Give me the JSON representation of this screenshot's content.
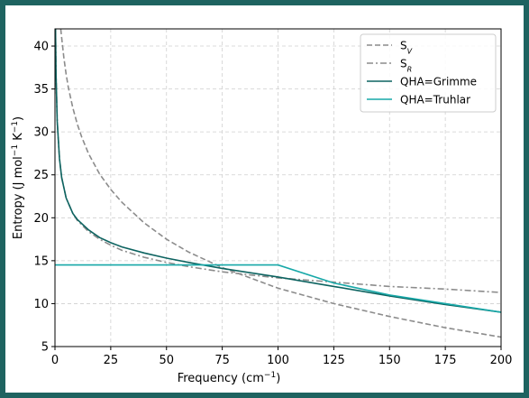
{
  "chart_data": {
    "type": "line",
    "xlabel": "Frequency (cm",
    "xlabel_sup": "−1",
    "xlabel_end": ")",
    "ylabel": "Entropy (J mol",
    "ylabel_sup1": "−1",
    "ylabel_mid": " K",
    "ylabel_sup2": "−1",
    "ylabel_end": ")",
    "xlim": [
      0,
      200
    ],
    "ylim": [
      5,
      42
    ],
    "xticks": [
      0,
      25,
      50,
      75,
      100,
      125,
      150,
      175,
      200
    ],
    "yticks": [
      5,
      10,
      15,
      20,
      25,
      30,
      35,
      40
    ],
    "grid": true,
    "legend_position": "top-right",
    "series": [
      {
        "name": "S",
        "name_sub": "V",
        "color": "#8c8c8c",
        "dash": "dashed",
        "x": [
          2.6,
          3,
          4,
          5,
          6,
          8,
          10,
          12,
          15,
          20,
          25,
          30,
          40,
          50,
          60,
          75,
          100,
          125,
          150,
          175,
          200
        ],
        "y": [
          42.0,
          41.0,
          38.6,
          36.7,
          35.2,
          32.8,
          30.9,
          29.4,
          27.5,
          25.1,
          23.3,
          21.8,
          19.4,
          17.5,
          16.0,
          14.2,
          11.8,
          10.0,
          8.5,
          7.2,
          6.1
        ]
      },
      {
        "name": "S",
        "name_sub": "R",
        "color": "#8c8c8c",
        "dash": "dashdot",
        "x": [
          0.25,
          0.5,
          1,
          2,
          3,
          5,
          8,
          10,
          15,
          20,
          25,
          30,
          40,
          50,
          60,
          75,
          100,
          125,
          150,
          175,
          200
        ],
        "y": [
          42.0,
          36.6,
          31.2,
          26.9,
          24.7,
          22.3,
          20.5,
          19.7,
          18.4,
          17.5,
          16.8,
          16.2,
          15.4,
          14.8,
          14.3,
          13.7,
          13.0,
          12.5,
          12.0,
          11.7,
          11.3
        ]
      },
      {
        "name": "QHA=Grimme",
        "color": "#0d6360",
        "dash": "solid",
        "x": [
          0.25,
          0.5,
          1,
          2,
          3,
          5,
          8,
          10,
          15,
          20,
          25,
          30,
          40,
          50,
          60,
          75,
          100,
          125,
          150,
          175,
          200
        ],
        "y": [
          42.0,
          36.6,
          31.2,
          26.9,
          24.7,
          22.3,
          20.5,
          19.8,
          18.6,
          17.7,
          17.1,
          16.6,
          15.9,
          15.3,
          14.8,
          14.1,
          13.1,
          12.0,
          10.9,
          9.9,
          9.0
        ]
      },
      {
        "name": "QHA=Truhlar",
        "color": "#17a8a8",
        "dash": "solid",
        "x": [
          0,
          100,
          125,
          150,
          175,
          200
        ],
        "y": [
          14.5,
          14.5,
          12.4,
          11.0,
          10.0,
          9.0
        ]
      }
    ]
  }
}
